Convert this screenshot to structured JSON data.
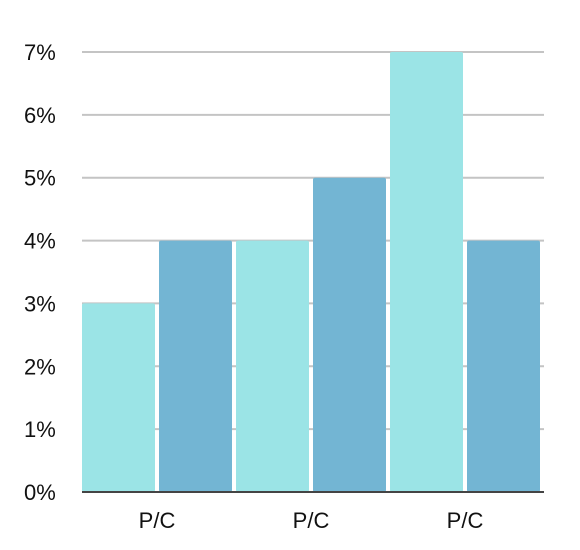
{
  "chart_data": {
    "type": "bar",
    "categories": [
      "P/C",
      "P/C",
      "P/C"
    ],
    "series": [
      {
        "values": [
          3,
          4,
          7
        ],
        "color": "#9be4e6"
      },
      {
        "values": [
          4,
          5,
          4
        ],
        "color": "#73b5d3"
      }
    ],
    "ylim": [
      0,
      7
    ],
    "yticks": [
      {
        "value": 0,
        "label": "0%"
      },
      {
        "value": 1,
        "label": "1%"
      },
      {
        "value": 2,
        "label": "2%"
      },
      {
        "value": 3,
        "label": "3%"
      },
      {
        "value": 4,
        "label": "4%"
      },
      {
        "value": 5,
        "label": "5%"
      },
      {
        "value": 6,
        "label": "6%"
      },
      {
        "value": 7,
        "label": "7%"
      }
    ],
    "grid": true,
    "legend": "none",
    "title": "",
    "xlabel": "",
    "ylabel": ""
  }
}
